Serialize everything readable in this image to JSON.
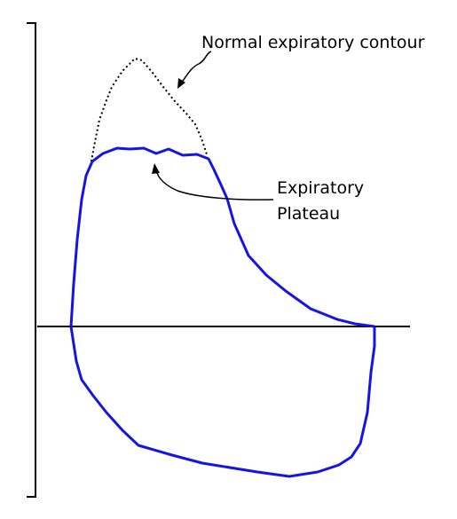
{
  "labels": {
    "normal_contour": "Normal expiratory contour",
    "plateau_line1": "Expiratory",
    "plateau_line2": "Plateau"
  },
  "colors": {
    "flow_volume_loop": "#1414e6",
    "normal_contour": "#000000",
    "axes": "#000000",
    "background": "#ffffff"
  }
}
